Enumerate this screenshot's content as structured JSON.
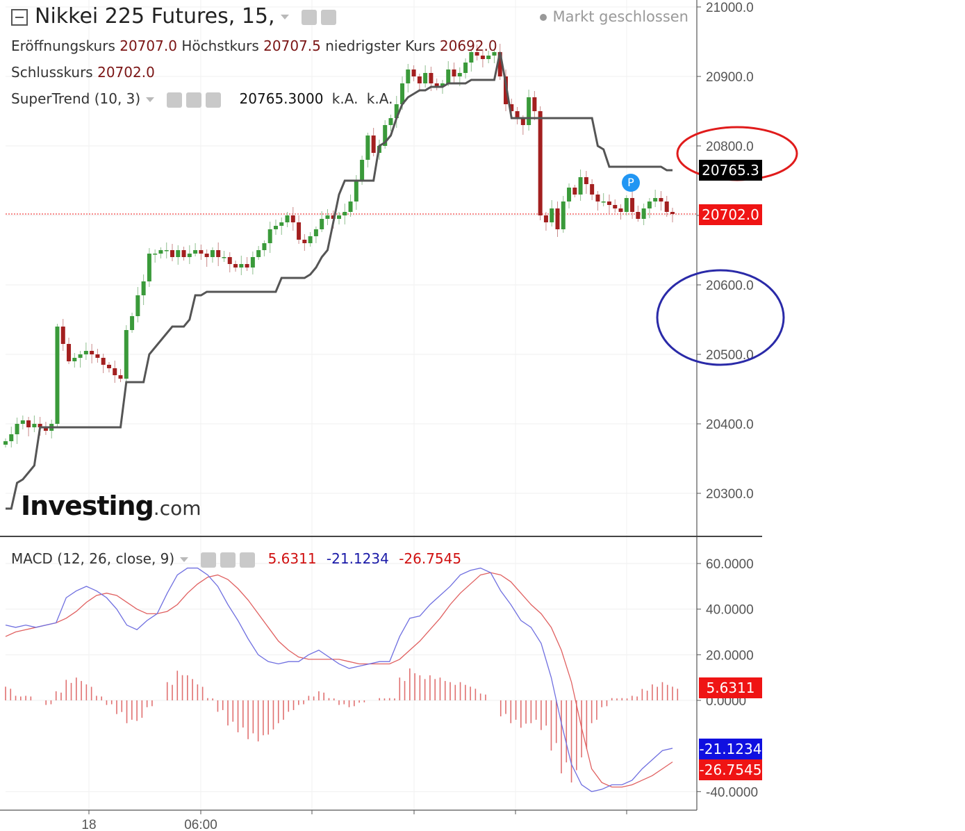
{
  "header": {
    "title": "Nikkei 225 Futures, 15,",
    "market_status": "Markt geschlossen",
    "open_label": "Eröffnungskurs",
    "open_value": "20707.0",
    "high_label": "Höchstkurs",
    "high_value": "20707.5",
    "low_label": "niedrigster Kurs",
    "low_value": "20692.0",
    "close_label": "Schlusskurs",
    "close_value": "20702.0"
  },
  "supertrend": {
    "label": "SuperTrend (10, 3)",
    "value": "20765.3000",
    "na1": "k.A.",
    "na2": "k.A.",
    "badge": "20765.3"
  },
  "macd": {
    "label": "MACD (12, 26, close, 9)",
    "hist_value": "5.6311",
    "macd_value": "-21.1234",
    "signal_value": "-26.7545"
  },
  "last_price_badge": "20702.0",
  "logo": {
    "main": "Investing",
    "suffix": ".com"
  },
  "marker": "P",
  "colors": {
    "up": "#3a9a3a",
    "down": "#a31f1f",
    "supertrend": "#555555",
    "macd": "#6f6fe0",
    "signal": "#e06060",
    "histogram": "#e07070",
    "circle_red": "#e01b1b",
    "circle_blue": "#2a2aa8"
  },
  "chart_data": [
    {
      "type": "candlestick",
      "ylim": [
        20250,
        21010
      ],
      "yticks": [
        "21000.0",
        "20900.0",
        "20800.0",
        "20700.0",
        "20600.0",
        "20500.0",
        "20400.0",
        "20300.0"
      ],
      "xticks": [
        "18",
        "06:00"
      ],
      "close_series": [
        20375,
        20385,
        20400,
        20405,
        20395,
        20400,
        20395,
        20390,
        20400,
        20540,
        20515,
        20490,
        20495,
        20500,
        20505,
        20500,
        20495,
        20485,
        20480,
        20470,
        20465,
        20535,
        20555,
        20585,
        20605,
        20645,
        20645,
        20650,
        20650,
        20640,
        20650,
        20640,
        20645,
        20650,
        20645,
        20640,
        20650,
        20640,
        20640,
        20630,
        20625,
        20630,
        20625,
        20640,
        20650,
        20660,
        20680,
        20685,
        20690,
        20700,
        20690,
        20665,
        20660,
        20670,
        20680,
        20695,
        20700,
        20695,
        20700,
        20705,
        20720,
        20750,
        20780,
        20815,
        20790,
        20800,
        20830,
        20840,
        20860,
        20890,
        20910,
        20900,
        20890,
        20905,
        20890,
        20885,
        20890,
        20910,
        20900,
        20905,
        20920,
        20935,
        20930,
        20925,
        20930,
        20935,
        20900,
        20860,
        20850,
        20840,
        20830,
        20870,
        20850,
        20700,
        20690,
        20710,
        20680,
        20720,
        20740,
        20730,
        20755,
        20745,
        20730,
        20720,
        20720,
        20715,
        20710,
        20705,
        20725,
        20705,
        20695,
        20710,
        20720,
        20725,
        20720,
        20705,
        20702
      ],
      "supertrend_series": [
        20278,
        20278,
        20315,
        20320,
        20330,
        20340,
        20395,
        20395,
        20395,
        20395,
        20395,
        20395,
        20395,
        20395,
        20395,
        20395,
        20395,
        20395,
        20395,
        20395,
        20395,
        20460,
        20460,
        20460,
        20460,
        20500,
        20510,
        20520,
        20530,
        20540,
        20540,
        20540,
        20550,
        20585,
        20585,
        20590,
        20590,
        20590,
        20590,
        20590,
        20590,
        20590,
        20590,
        20590,
        20590,
        20590,
        20590,
        20590,
        20610,
        20610,
        20610,
        20610,
        20610,
        20615,
        20625,
        20640,
        20650,
        20690,
        20730,
        20750,
        20750,
        20750,
        20750,
        20750,
        20750,
        20800,
        20805,
        20815,
        20840,
        20860,
        20870,
        20875,
        20880,
        20880,
        20885,
        20885,
        20885,
        20890,
        20890,
        20890,
        20890,
        20895,
        20895,
        20895,
        20895,
        20895,
        20935,
        20890,
        20840,
        20840,
        20840,
        20840,
        20840,
        20840,
        20840,
        20840,
        20840,
        20840,
        20840,
        20840,
        20840,
        20840,
        20840,
        20800,
        20795,
        20770,
        20770,
        20770,
        20770,
        20770,
        20770,
        20770,
        20770,
        20770,
        20770,
        20765,
        20765
      ]
    },
    {
      "type": "line",
      "title": "MACD (12, 26, close, 9)",
      "ylim": [
        -45,
        65
      ],
      "yticks": [
        "60.0000",
        "40.0000",
        "20.0000",
        "0.0000",
        "-40.0000"
      ],
      "series": [
        {
          "name": "MACD",
          "values": [
            33,
            32,
            33,
            32,
            33,
            34,
            45,
            48,
            50,
            48,
            45,
            40,
            33,
            31,
            35,
            38,
            47,
            55,
            58,
            58,
            55,
            50,
            42,
            35,
            27,
            20,
            17,
            16,
            17,
            17,
            20,
            22,
            19,
            16,
            14,
            15,
            16,
            17,
            17,
            28,
            36,
            37,
            42,
            46,
            50,
            55,
            57,
            58,
            56,
            48,
            42,
            35,
            32,
            25,
            10,
            -10,
            -28,
            -37,
            -40,
            -39,
            -37,
            -37,
            -35,
            -30,
            -26,
            -22,
            -21
          ]
        },
        {
          "name": "Signal",
          "values": [
            28,
            30,
            31,
            32,
            33,
            34,
            36,
            39,
            43,
            46,
            47,
            46,
            43,
            40,
            38,
            38,
            39,
            42,
            47,
            51,
            54,
            55,
            53,
            49,
            44,
            38,
            32,
            26,
            22,
            19,
            18,
            18,
            18,
            18,
            17,
            16,
            16,
            16,
            16,
            18,
            22,
            26,
            31,
            36,
            42,
            47,
            51,
            55,
            56,
            55,
            52,
            47,
            42,
            38,
            32,
            22,
            8,
            -12,
            -30,
            -36,
            -38,
            -38,
            -37,
            -35,
            -33,
            -30,
            -27
          ]
        },
        {
          "name": "Histogram",
          "values": [
            6,
            2,
            2,
            0,
            -2,
            4,
            9,
            10,
            7,
            2,
            -2,
            -6,
            -10,
            -9,
            -3,
            0,
            8,
            13,
            11,
            7,
            1,
            -5,
            -11,
            -14,
            -17,
            -18,
            -15,
            -10,
            -5,
            -2,
            2,
            4,
            1,
            -2,
            -3,
            -1,
            0,
            1,
            1,
            10,
            14,
            11,
            11,
            10,
            8,
            8,
            6,
            3,
            0,
            -7,
            -10,
            -12,
            -10,
            -13,
            -22,
            -32,
            -36,
            -25,
            -10,
            -3,
            1,
            1,
            2,
            5,
            7,
            8,
            6
          ]
        }
      ]
    }
  ]
}
